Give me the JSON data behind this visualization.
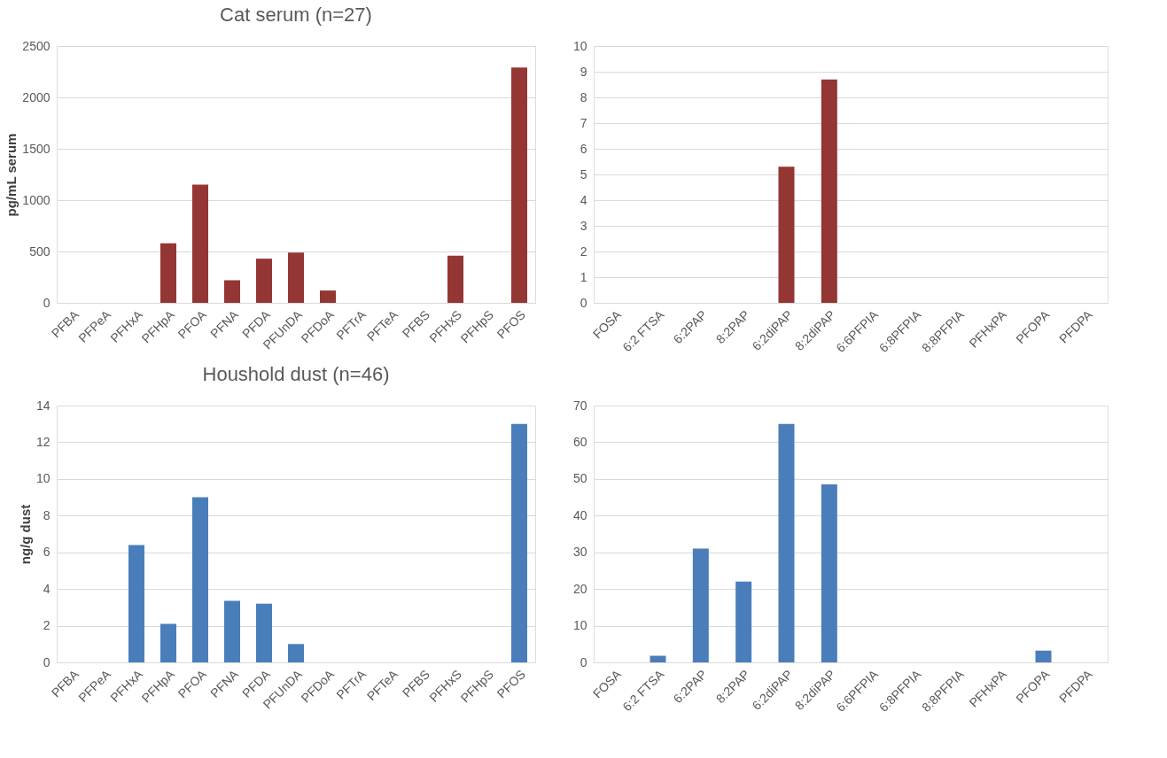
{
  "chart_data": [
    {
      "type": "bar",
      "title": "Cat serum (n=27)",
      "ylabel": "pg/mL serum",
      "categories": [
        "PFBA",
        "PFPeA",
        "PFHxA",
        "PFHpA",
        "PFOA",
        "PFNA",
        "PFDA",
        "PFUnDA",
        "PFDoA",
        "PFTrA",
        "PFTeA",
        "PFBS",
        "PFHxS",
        "PFHpS",
        "PFOS"
      ],
      "values": [
        null,
        null,
        null,
        580,
        1150,
        220,
        430,
        490,
        120,
        null,
        null,
        null,
        460,
        null,
        2290
      ],
      "color": "#943634",
      "ylim": [
        0,
        2500
      ],
      "yticks": [
        0,
        500,
        1000,
        1500,
        2000,
        2500
      ],
      "grid": "y"
    },
    {
      "type": "bar",
      "categories": [
        "FOSA",
        "6:2 FTSA",
        "6:2PAP",
        "8:2PAP",
        "6:2diPAP",
        "8:2diPAP",
        "6:6PFPIA",
        "6:8PFPIA",
        "8:8PFPIA",
        "PFHxPA",
        "PFOPA",
        "PFDPA"
      ],
      "values": [
        null,
        null,
        null,
        null,
        5.3,
        8.7,
        null,
        null,
        null,
        null,
        null,
        null
      ],
      "color": "#943634",
      "ylim": [
        0,
        10
      ],
      "yticks": [
        0,
        1,
        2,
        3,
        4,
        5,
        6,
        7,
        8,
        9,
        10
      ],
      "grid": "y"
    },
    {
      "type": "bar",
      "title": "Houshold dust (n=46)",
      "ylabel": "ng/g dust",
      "categories": [
        "PFBA",
        "PFPeA",
        "PFHxA",
        "PFHpA",
        "PFOA",
        "PFNA",
        "PFDA",
        "PFUnDA",
        "PFDoA",
        "PFTrA",
        "PFTeA",
        "PFBS",
        "PFHxS",
        "PFHpS",
        "PFOS"
      ],
      "values": [
        null,
        null,
        6.4,
        2.1,
        9.0,
        3.35,
        3.2,
        1.0,
        null,
        null,
        null,
        null,
        null,
        null,
        13.0
      ],
      "color": "#4a7ebb",
      "ylim": [
        0,
        14
      ],
      "yticks": [
        0,
        2,
        4,
        6,
        8,
        10,
        12,
        14
      ],
      "grid": "y"
    },
    {
      "type": "bar",
      "categories": [
        "FOSA",
        "6:2 FTSA",
        "6:2PAP",
        "8:2PAP",
        "6:2diPAP",
        "8:2diPAP",
        "6:6PFPIA",
        "6:8PFPIA",
        "8:8PFPIA",
        "PFHxPA",
        "PFOPA",
        "PFDPA"
      ],
      "values": [
        null,
        1.8,
        31,
        22,
        65,
        48.5,
        null,
        null,
        null,
        null,
        3.2,
        null
      ],
      "color": "#4a7ebb",
      "ylim": [
        0,
        70
      ],
      "yticks": [
        0,
        10,
        20,
        30,
        40,
        50,
        60,
        70
      ],
      "grid": "y"
    }
  ]
}
